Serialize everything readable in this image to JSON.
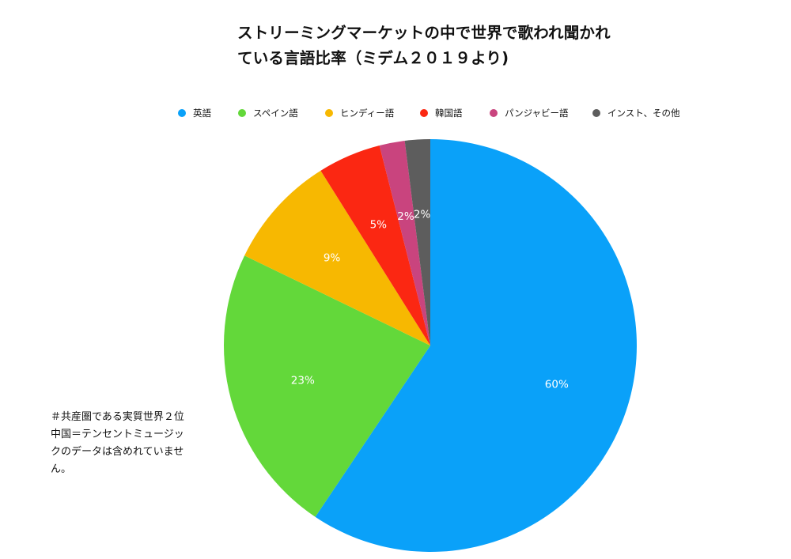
{
  "title": {
    "line1": "ストリーミングマーケットの中で世界で歌われ聞かれ",
    "line2": "ている言語比率（ミデム２０１９より)"
  },
  "note": {
    "line1": "＃共産圏である実質世界２位",
    "line2": "中国＝テンセントミュージッ",
    "line3": "クのデータは含めれていませ",
    "line4": "ん。"
  },
  "chart_data": {
    "type": "pie",
    "title": "ストリーミングマーケットの中で世界で歌われ聞かれている言語比率（ミデム２０１９より)",
    "legend_position": "top",
    "slices": [
      {
        "name": "英語",
        "value": 60,
        "label": "60%",
        "color": "#0aa1f9"
      },
      {
        "name": "スペイン語",
        "value": 23,
        "label": "23%",
        "color": "#63d83a"
      },
      {
        "name": "ヒンディー語",
        "value": 9,
        "label": "9%",
        "color": "#f7b801"
      },
      {
        "name": "韓国語",
        "value": 5,
        "label": "5%",
        "color": "#fb2712"
      },
      {
        "name": "パンジャビー語",
        "value": 2,
        "label": "2%",
        "color": "#c9447e"
      },
      {
        "name": "インスト、その他",
        "value": 2,
        "label": "2%",
        "color": "#5d5d5d"
      }
    ]
  }
}
